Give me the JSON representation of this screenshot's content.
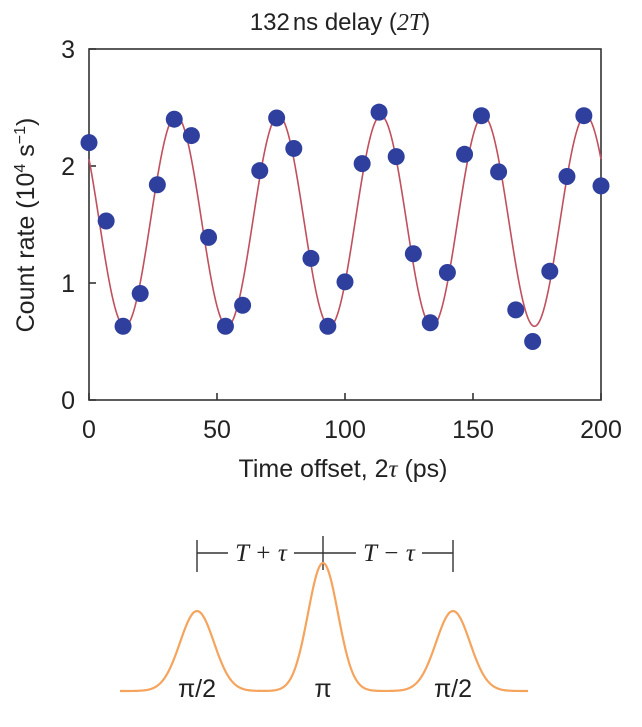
{
  "chart_data": {
    "type": "scatter",
    "title": "132 ns delay (2T)",
    "title_prefix": "132",
    "title_unit": "ns delay (",
    "title_var": "2T",
    "title_suffix": ")",
    "xlabel_prefix": "Time offset, 2",
    "xlabel_var": "τ",
    "xlabel_suffix": " (ps)",
    "ylabel_prefix": "Count rate (10",
    "ylabel_exp1": "4",
    "ylabel_mid": " s",
    "ylabel_exp2": "−1",
    "ylabel_suffix": ")",
    "xlim": [
      0,
      200
    ],
    "ylim": [
      0,
      3
    ],
    "x_ticks": [
      0,
      50,
      100,
      150,
      200
    ],
    "y_ticks": [
      0,
      1,
      2,
      3
    ],
    "grid": false,
    "marker_color": "#2e3f9e",
    "fit_color": "#c0505e",
    "series": [
      {
        "type": "scatter",
        "x": [
          0,
          6.7,
          13.3,
          20,
          26.7,
          33.3,
          40,
          46.7,
          53.3,
          60,
          66.7,
          73.3,
          80,
          86.7,
          93.3,
          100,
          106.7,
          113.3,
          120,
          126.7,
          133.3,
          140,
          146.7,
          153.3,
          160,
          166.7,
          173.3,
          180,
          186.7,
          193.3,
          200
        ],
        "y": [
          2.2,
          1.53,
          0.63,
          0.91,
          1.84,
          2.4,
          2.26,
          1.39,
          0.63,
          0.81,
          1.96,
          2.41,
          2.15,
          1.21,
          0.63,
          1.01,
          2.02,
          2.46,
          2.08,
          1.25,
          0.66,
          1.09,
          2.1,
          2.43,
          1.95,
          0.77,
          0.5,
          1.1,
          1.91,
          2.43,
          1.83
        ]
      },
      {
        "type": "line",
        "fit": {
          "offset": 1.53,
          "amplitude": 0.9,
          "period_ps": 40,
          "peak_at_ps": 34
        }
      }
    ]
  },
  "pulse_diagram": {
    "left_interval_label": "T + τ",
    "right_interval_label": "T − τ",
    "pulse_labels": [
      "π/2",
      "π",
      "π/2"
    ],
    "pulse_color": "#f5a45d"
  }
}
